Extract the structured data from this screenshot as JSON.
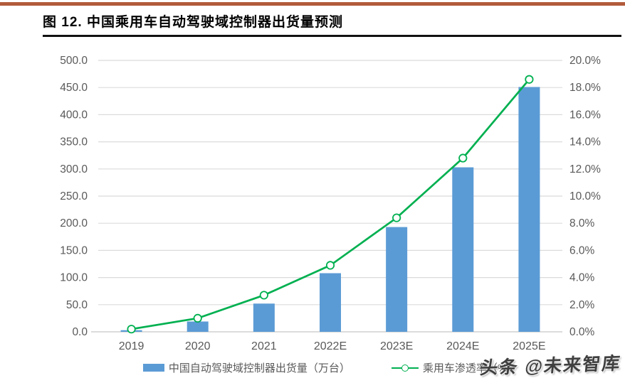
{
  "header": {
    "title": "图 12. 中国乘用车自动驾驶域控制器出货量预测"
  },
  "watermark": {
    "text": "头条 @未来智库"
  },
  "colors": {
    "bar": "#5B9BD5",
    "line": "#00B050",
    "marker_fill": "#FFFFFF",
    "axis_text": "#595959",
    "gridline": "#DBDBDB",
    "baseline": "#C6C6C6",
    "accent_rule": "#B25B3B",
    "title_rule": "#111111"
  },
  "chart_data": {
    "type": "bar",
    "subtype": "bar+line combo, dual axis",
    "title": "中国乘用车自动驾驶域控制器出货量预测",
    "categories": [
      "2019",
      "2020",
      "2021",
      "2022E",
      "2023E",
      "2024E",
      "2025E"
    ],
    "series": [
      {
        "name": "中国自动驾驶域控制器出货量（万台）",
        "type": "bar",
        "axis": "left",
        "color": "#5B9BD5",
        "values": [
          3,
          19,
          52,
          108,
          193,
          303,
          451
        ]
      },
      {
        "name": "乘用车渗透率（%）",
        "type": "line",
        "axis": "right",
        "color": "#00B050",
        "values": [
          0.2,
          1.0,
          2.7,
          4.9,
          8.4,
          12.8,
          18.6
        ]
      }
    ],
    "left_axis": {
      "min": 0,
      "max": 500,
      "step": 50,
      "tick_labels": [
        "0.0",
        "50.0",
        "100.0",
        "150.0",
        "200.0",
        "250.0",
        "300.0",
        "350.0",
        "400.0",
        "450.0",
        "500.0"
      ]
    },
    "right_axis": {
      "min": 0,
      "max": 20,
      "step": 2,
      "tick_labels": [
        "0.0%",
        "2.0%",
        "4.0%",
        "6.0%",
        "8.0%",
        "10.0%",
        "12.0%",
        "14.0%",
        "16.0%",
        "18.0%",
        "20.0%"
      ]
    },
    "grid": true,
    "legend_position": "bottom"
  }
}
